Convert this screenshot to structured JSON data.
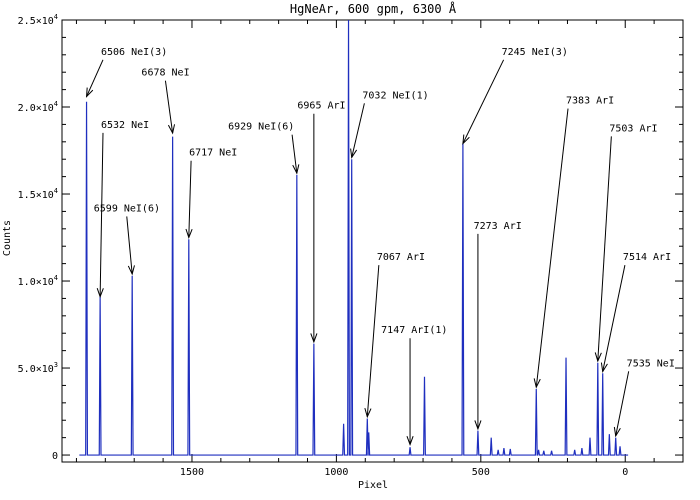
{
  "chart_data": {
    "type": "line",
    "title": "HgNeAr, 600 gpm, 6300 Å",
    "xlabel": "Pixel",
    "ylabel": "Counts",
    "xlim": [
      1950,
      -200
    ],
    "ylim": [
      -400,
      25000
    ],
    "x_ticks": [
      {
        "value": 1500,
        "label": "1500"
      },
      {
        "value": 1000,
        "label": "1000"
      },
      {
        "value": 500,
        "label": "500"
      },
      {
        "value": 0,
        "label": "0"
      }
    ],
    "y_ticks": [
      {
        "value": 0,
        "label": "0",
        "mant": "",
        "exp": ""
      },
      {
        "value": 5000,
        "label": "",
        "mant": "5.0×10",
        "exp": "3"
      },
      {
        "value": 10000,
        "label": "",
        "mant": "1.0×10",
        "exp": "4"
      },
      {
        "value": 15000,
        "label": "",
        "mant": "1.5×10",
        "exp": "4"
      },
      {
        "value": 20000,
        "label": "",
        "mant": "2.0×10",
        "exp": "4"
      },
      {
        "value": 25000,
        "label": "",
        "mant": "2.5×10",
        "exp": "4"
      }
    ],
    "series": [
      {
        "color": "#1f2fbf",
        "baseline": 0,
        "peaks": [
          {
            "x": 1865,
            "y": 20300
          },
          {
            "x": 1818,
            "y": 9100
          },
          {
            "x": 1707,
            "y": 10300
          },
          {
            "x": 1567,
            "y": 18300
          },
          {
            "x": 1511,
            "y": 12400
          },
          {
            "x": 1137,
            "y": 16100
          },
          {
            "x": 1078,
            "y": 6400
          },
          {
            "x": 975,
            "y": 1800
          },
          {
            "x": 958,
            "y": 25000
          },
          {
            "x": 947,
            "y": 17000
          },
          {
            "x": 893,
            "y": 2100
          },
          {
            "x": 888,
            "y": 1300
          },
          {
            "x": 745,
            "y": 450
          },
          {
            "x": 695,
            "y": 4500
          },
          {
            "x": 562,
            "y": 17900
          },
          {
            "x": 510,
            "y": 1400
          },
          {
            "x": 464,
            "y": 1000
          },
          {
            "x": 440,
            "y": 300
          },
          {
            "x": 420,
            "y": 400
          },
          {
            "x": 398,
            "y": 350
          },
          {
            "x": 308,
            "y": 3800
          },
          {
            "x": 300,
            "y": 300
          },
          {
            "x": 282,
            "y": 250
          },
          {
            "x": 255,
            "y": 250
          },
          {
            "x": 205,
            "y": 5600
          },
          {
            "x": 175,
            "y": 300
          },
          {
            "x": 150,
            "y": 400
          },
          {
            "x": 122,
            "y": 1000
          },
          {
            "x": 95,
            "y": 5300
          },
          {
            "x": 78,
            "y": 4700
          },
          {
            "x": 55,
            "y": 1200
          },
          {
            "x": 33,
            "y": 1000
          },
          {
            "x": 18,
            "y": 500
          }
        ]
      }
    ],
    "annotations": [
      {
        "text": "6506 NeI(3)",
        "tip_x": 1865,
        "tip_y": 20600,
        "text_anchor": "start",
        "label_x": 1815,
        "label_y": 23000
      },
      {
        "text": "6532 NeI",
        "tip_x": 1818,
        "tip_y": 9100,
        "text_anchor": "start",
        "label_x": 1815,
        "label_y": 18800
      },
      {
        "text": "6599 NeI(6)",
        "tip_x": 1707,
        "tip_y": 10400,
        "text_anchor": "start",
        "label_x": 1840,
        "label_y": 14000
      },
      {
        "text": "6678 NeI",
        "tip_x": 1567,
        "tip_y": 18500,
        "text_anchor": "start",
        "label_x": 1675,
        "label_y": 21800
      },
      {
        "text": "6717 NeI",
        "tip_x": 1511,
        "tip_y": 12500,
        "text_anchor": "start",
        "label_x": 1510,
        "label_y": 17200
      },
      {
        "text": "6929 NeI(6)",
        "tip_x": 1137,
        "tip_y": 16200,
        "text_anchor": "start",
        "label_x": 1375,
        "label_y": 18700
      },
      {
        "text": "6965 ArI",
        "tip_x": 1078,
        "tip_y": 6500,
        "text_anchor": "start",
        "label_x": 1135,
        "label_y": 19900
      },
      {
        "text": "7032 NeI(1)",
        "tip_x": 947,
        "tip_y": 17100,
        "text_anchor": "start",
        "label_x": 910,
        "label_y": 20500
      },
      {
        "text": "7067 ArI",
        "tip_x": 893,
        "tip_y": 2200,
        "text_anchor": "start",
        "label_x": 860,
        "label_y": 11200
      },
      {
        "text": "7147 ArI(1)",
        "tip_x": 745,
        "tip_y": 600,
        "text_anchor": "start",
        "label_x": 845,
        "label_y": 7000
      },
      {
        "text": "7245 NeI(3)",
        "tip_x": 562,
        "tip_y": 17900,
        "text_anchor": "start",
        "label_x": 428,
        "label_y": 23000
      },
      {
        "text": "7273 ArI",
        "tip_x": 510,
        "tip_y": 1500,
        "text_anchor": "start",
        "label_x": 525,
        "label_y": 13000
      },
      {
        "text": "7383 ArI",
        "tip_x": 308,
        "tip_y": 3900,
        "text_anchor": "start",
        "label_x": 205,
        "label_y": 20200
      },
      {
        "text": "7503 ArI",
        "tip_x": 95,
        "tip_y": 5400,
        "text_anchor": "start",
        "label_x": 55,
        "label_y": 18600
      },
      {
        "text": "7514 ArI",
        "tip_x": 78,
        "tip_y": 4800,
        "text_anchor": "start",
        "label_x": 8,
        "label_y": 11200
      },
      {
        "text": "7535 NeI",
        "tip_x": 33,
        "tip_y": 1100,
        "text_anchor": "start",
        "label_x": -5,
        "label_y": 5100
      }
    ]
  }
}
